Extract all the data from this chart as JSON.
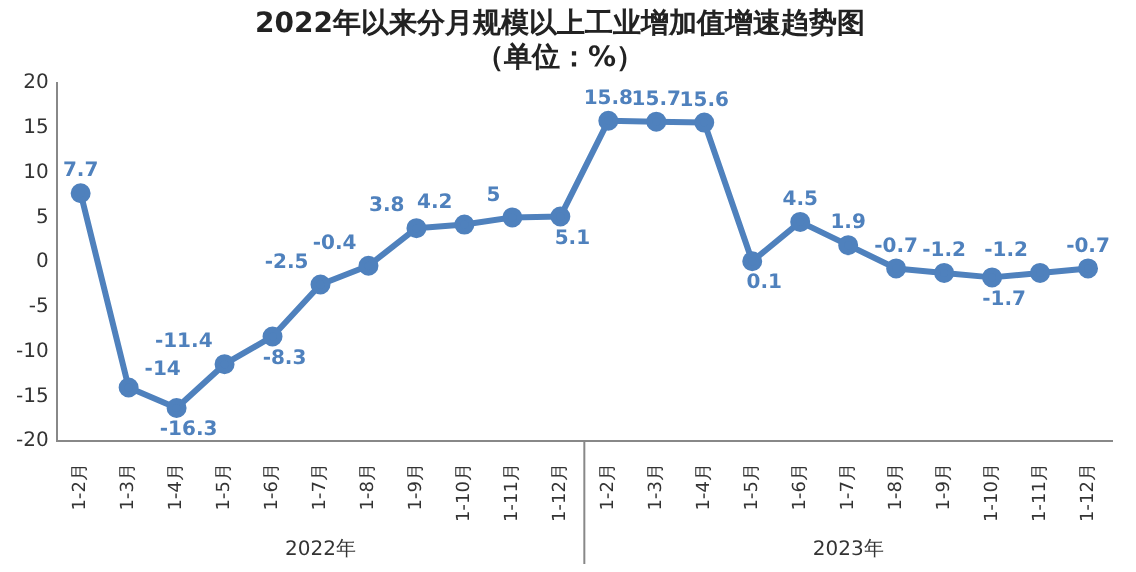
{
  "chart_data": {
    "type": "line",
    "title": "2022年以来分月规模以上工业增加值增速趋势图",
    "subtitle": "（单位：%）",
    "categories": [
      "1-2月",
      "1-3月",
      "1-4月",
      "1-5月",
      "1-6月",
      "1-7月",
      "1-8月",
      "1-9月",
      "1-10月",
      "1-11月",
      "1-12月",
      "1-2月",
      "1-3月",
      "1-4月",
      "1-5月",
      "1-6月",
      "1-7月",
      "1-8月",
      "1-9月",
      "1-10月",
      "1-11月",
      "1-12月"
    ],
    "series": [
      {
        "color": "#4f81bd",
        "values": [
          7.7,
          -14,
          -16.3,
          -11.4,
          -8.3,
          -2.5,
          -0.4,
          3.8,
          4.2,
          5,
          5.1,
          15.8,
          15.7,
          15.6,
          0.1,
          4.5,
          1.9,
          -0.7,
          -1.2,
          -1.7,
          -1.2,
          -0.7
        ]
      }
    ],
    "ylim": [
      -20,
      20
    ],
    "yticks": [
      -20,
      -15,
      -10,
      -5,
      0,
      5,
      10,
      15,
      20
    ],
    "annotations": [
      "2022年",
      "2023年"
    ],
    "data_labels": true,
    "grid": false,
    "legend": false,
    "marker": "circle",
    "line_style": "solid"
  }
}
